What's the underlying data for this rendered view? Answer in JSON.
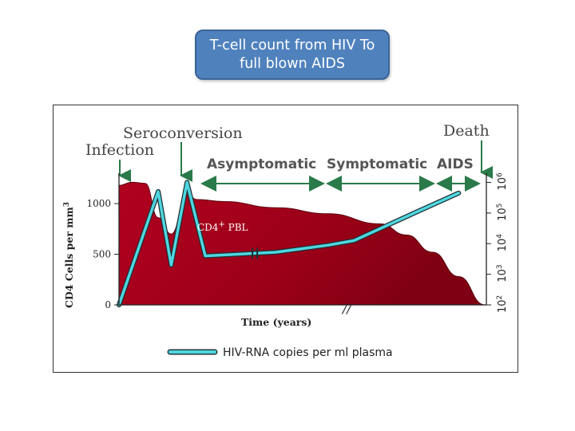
{
  "slide": {
    "title_line1": "T-cell count from HIV To",
    "title_line2": "full blown AIDS"
  },
  "chart_data": {
    "type": "line",
    "events": [
      "Infection",
      "Seroconversion",
      "Death"
    ],
    "stages": [
      "Asymptomatic",
      "Symptomatic",
      "AIDS"
    ],
    "xlabel": "Time (years)",
    "ylabel": "CD4 Cells per mm",
    "ylabel_sup": "3",
    "y_ticks": [
      "1000",
      "500",
      "0"
    ],
    "y2_ticks": [
      {
        "base": "10",
        "exp": "6"
      },
      {
        "base": "10",
        "exp": "5"
      },
      {
        "base": "10",
        "exp": "4"
      },
      {
        "base": "10",
        "exp": "3"
      },
      {
        "base": "10",
        "exp": "2"
      }
    ],
    "ylim": [
      0,
      1300
    ],
    "y2lim": [
      2,
      6.3
    ],
    "area_label": "CD4",
    "area_label_sup": "+",
    "area_label_suffix": " PBL",
    "axis_break": "//",
    "series": [
      {
        "name": "CD4+ PBL",
        "kind": "area",
        "color": "#a4001a",
        "points": [
          [
            0,
            1180
          ],
          [
            0.5,
            1210
          ],
          [
            1.0,
            1200
          ],
          [
            1.5,
            860
          ],
          [
            2.0,
            700
          ],
          [
            2.6,
            1090
          ],
          [
            3.0,
            1040
          ],
          [
            4.0,
            1020
          ],
          [
            6.0,
            960
          ],
          [
            8.0,
            900
          ],
          [
            10.0,
            800
          ],
          [
            11.0,
            690
          ],
          [
            12.0,
            520
          ],
          [
            13.0,
            280
          ],
          [
            14.0,
            0
          ]
        ]
      },
      {
        "name": "HIV-RNA copies per ml plasma",
        "kind": "line",
        "color": "#4fd6df",
        "log10_points": [
          [
            0,
            2.0
          ],
          [
            1.5,
            5.7
          ],
          [
            2.0,
            3.3
          ],
          [
            2.6,
            6.0
          ],
          [
            3.3,
            3.6
          ],
          [
            6.0,
            3.72
          ],
          [
            8.0,
            3.95
          ],
          [
            9.0,
            4.1
          ],
          [
            11.3,
            5.0
          ],
          [
            13.0,
            5.65
          ]
        ]
      }
    ],
    "legend": {
      "label": "HIV-RNA copies per ml plasma",
      "color": "#4fd6df",
      "position": "bottom"
    }
  }
}
